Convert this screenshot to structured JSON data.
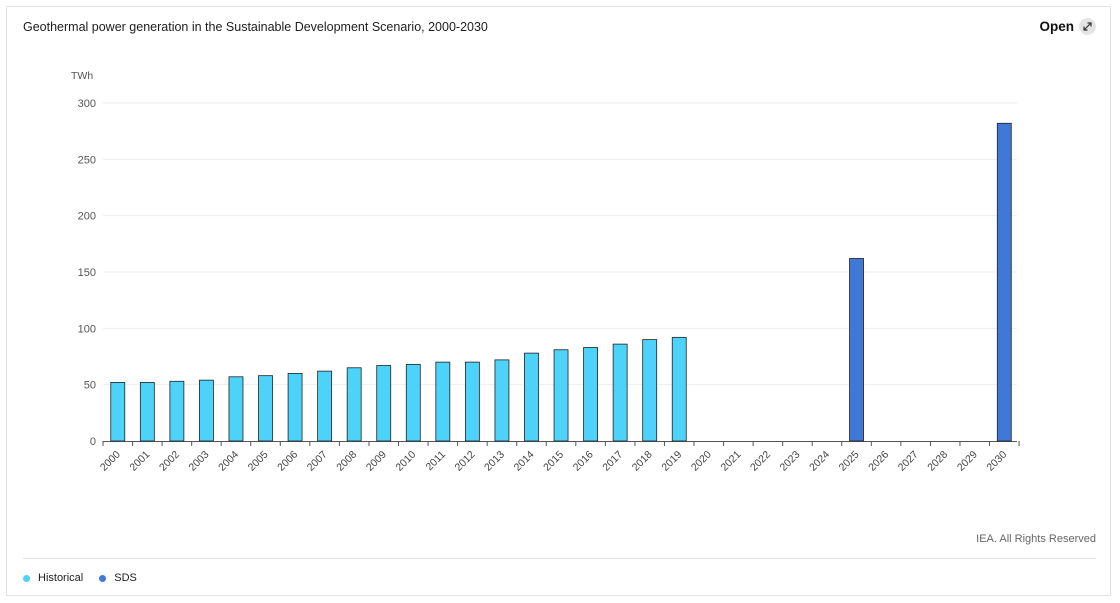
{
  "header": {
    "title": "Geothermal power generation in the Sustainable Development Scenario, 2000-2030",
    "open_label": "Open",
    "open_icon": "expand-arrow-icon"
  },
  "footer": {
    "copyright": "IEA. All Rights Reserved"
  },
  "colors": {
    "historical": "#4dd2f9",
    "sds": "#3f78d6",
    "gridline": "#eeeeee",
    "axis": "#555555"
  },
  "legend": [
    {
      "label": "Historical",
      "color": "#4dd2f9"
    },
    {
      "label": "SDS",
      "color": "#3f78d6"
    }
  ],
  "chart_data": {
    "type": "bar",
    "title": "Geothermal power generation in the Sustainable Development Scenario, 2000-2030",
    "ylabel": "TWh",
    "ylim": [
      0,
      300
    ],
    "yticks": [
      0,
      50,
      100,
      150,
      200,
      250,
      300
    ],
    "grid": true,
    "legend_position": "bottom-left",
    "categories": [
      "2000",
      "2001",
      "2002",
      "2003",
      "2004",
      "2005",
      "2006",
      "2007",
      "2008",
      "2009",
      "2010",
      "2011",
      "2012",
      "2013",
      "2014",
      "2015",
      "2016",
      "2017",
      "2018",
      "2019",
      "2020",
      "2021",
      "2022",
      "2023",
      "2024",
      "2025",
      "2026",
      "2027",
      "2028",
      "2029",
      "2030"
    ],
    "series": [
      {
        "name": "Historical",
        "color": "#4dd2f9",
        "values": [
          52,
          52,
          53,
          54,
          57,
          58,
          60,
          62,
          65,
          67,
          68,
          70,
          70,
          72,
          78,
          81,
          83,
          86,
          90,
          92,
          null,
          null,
          null,
          null,
          null,
          null,
          null,
          null,
          null,
          null,
          null
        ]
      },
      {
        "name": "SDS",
        "color": "#3f78d6",
        "values": [
          null,
          null,
          null,
          null,
          null,
          null,
          null,
          null,
          null,
          null,
          null,
          null,
          null,
          null,
          null,
          null,
          null,
          null,
          null,
          null,
          null,
          null,
          null,
          null,
          null,
          162,
          null,
          null,
          null,
          null,
          282
        ]
      }
    ]
  }
}
